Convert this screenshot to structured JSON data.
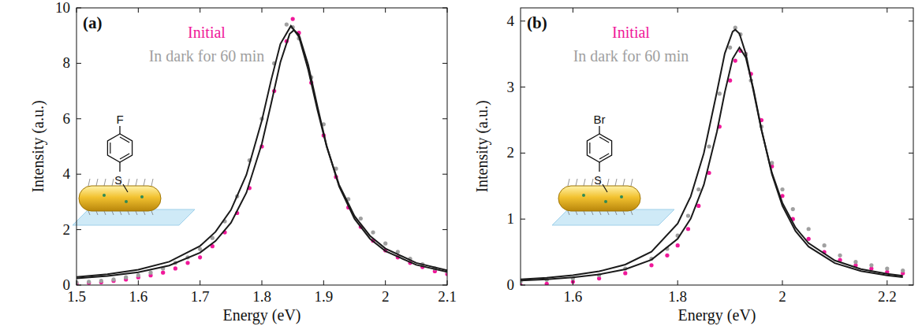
{
  "chart_data": [
    {
      "type": "scatter",
      "title": "(a)",
      "xlabel": "Energy (eV)",
      "ylabel": "Intensity (a.u.)",
      "xlim": [
        1.5,
        2.1
      ],
      "xticks": [
        1.5,
        1.6,
        1.7,
        1.8,
        1.9,
        2,
        2.1
      ],
      "ylim": [
        0,
        10
      ],
      "yticks": [
        0,
        2,
        4,
        6,
        8,
        10
      ],
      "legend": "upper left",
      "annotations": [
        "F",
        "S"
      ],
      "series": [
        {
          "name": "Initial",
          "color": "#f0189a",
          "type": "scatter",
          "marker": "circle",
          "x": [
            1.5,
            1.52,
            1.54,
            1.56,
            1.58,
            1.6,
            1.62,
            1.64,
            1.66,
            1.68,
            1.7,
            1.72,
            1.74,
            1.76,
            1.78,
            1.8,
            1.82,
            1.84,
            1.85,
            1.86,
            1.88,
            1.9,
            1.92,
            1.94,
            1.96,
            1.98,
            2.0,
            2.02,
            2.04,
            2.06,
            2.08,
            2.1
          ],
          "values": [
            0.05,
            0.08,
            0.1,
            0.15,
            0.2,
            0.28,
            0.35,
            0.45,
            0.6,
            0.8,
            1.0,
            1.4,
            1.9,
            2.6,
            3.5,
            5.0,
            7.0,
            8.8,
            9.6,
            9.1,
            7.3,
            5.4,
            3.9,
            2.8,
            2.1,
            1.6,
            1.25,
            1.0,
            0.8,
            0.65,
            0.5,
            0.4
          ]
        },
        {
          "name": "In dark for 60 min",
          "color": "#a0a0a0",
          "type": "scatter",
          "marker": "circle",
          "x": [
            1.5,
            1.52,
            1.54,
            1.56,
            1.58,
            1.6,
            1.62,
            1.64,
            1.66,
            1.68,
            1.7,
            1.72,
            1.74,
            1.76,
            1.78,
            1.8,
            1.82,
            1.84,
            1.85,
            1.86,
            1.88,
            1.9,
            1.92,
            1.94,
            1.96,
            1.98,
            2.0,
            2.02,
            2.04,
            2.06,
            2.08,
            2.1
          ],
          "values": [
            0.1,
            0.12,
            0.15,
            0.2,
            0.28,
            0.35,
            0.45,
            0.6,
            0.8,
            1.0,
            1.3,
            1.7,
            2.3,
            3.2,
            4.5,
            6.0,
            8.0,
            9.4,
            9.3,
            8.9,
            7.5,
            5.8,
            4.2,
            3.1,
            2.4,
            1.9,
            1.5,
            1.2,
            0.95,
            0.75,
            0.6,
            0.5
          ]
        },
        {
          "color": "#1a1a1a",
          "type": "line",
          "line_style": "solid",
          "x": [
            1.5,
            1.55,
            1.6,
            1.65,
            1.7,
            1.725,
            1.75,
            1.775,
            1.8,
            1.815,
            1.83,
            1.845,
            1.852,
            1.86,
            1.875,
            1.89,
            1.905,
            1.925,
            1.95,
            1.975,
            2.0,
            2.05,
            2.1
          ],
          "values": [
            0.243,
            0.327,
            0.462,
            0.702,
            1.169,
            1.589,
            2.249,
            3.333,
            5.1,
            6.54,
            8.04,
            9.06,
            9.2,
            9.03,
            7.95,
            6.44,
            5.01,
            3.56,
            2.39,
            1.67,
            1.225,
            0.727,
            0.477
          ]
        },
        {
          "color": "#1a1a1a",
          "type": "line",
          "line_style": "solid",
          "x": [
            1.5,
            1.55,
            1.6,
            1.65,
            1.7,
            1.725,
            1.75,
            1.775,
            1.8,
            1.815,
            1.83,
            1.847,
            1.86,
            1.875,
            1.89,
            1.905,
            1.925,
            1.95,
            1.975,
            2.0,
            2.05,
            2.1
          ],
          "values": [
            0.289,
            0.391,
            0.553,
            0.842,
            1.412,
            1.92,
            2.71,
            3.98,
            5.94,
            7.39,
            8.7,
            9.35,
            8.96,
            7.77,
            6.31,
            4.99,
            3.62,
            2.49,
            1.777,
            1.319,
            0.799,
            0.53
          ]
        }
      ]
    },
    {
      "type": "scatter",
      "title": "(b)",
      "xlabel": "Energy (eV)",
      "ylabel": "Intensity (a.u.)",
      "xlim": [
        1.5,
        2.25
      ],
      "xticks": [
        1.6,
        1.8,
        2,
        2.2
      ],
      "ylim": [
        0,
        4.2
      ],
      "yticks": [
        0,
        1,
        2,
        3,
        4
      ],
      "legend": "upper left",
      "annotations": [
        "Br",
        "S"
      ],
      "series": [
        {
          "name": "Initial",
          "color": "#f0189a",
          "type": "scatter",
          "marker": "circle",
          "x": [
            1.5,
            1.55,
            1.6,
            1.65,
            1.7,
            1.75,
            1.78,
            1.8,
            1.82,
            1.84,
            1.86,
            1.88,
            1.9,
            1.91,
            1.92,
            1.93,
            1.94,
            1.96,
            1.98,
            2.0,
            2.02,
            2.05,
            2.08,
            2.11,
            2.14,
            2.17,
            2.2,
            2.23
          ],
          "values": [
            0.0,
            0.02,
            0.05,
            0.1,
            0.18,
            0.3,
            0.45,
            0.6,
            0.85,
            1.2,
            1.7,
            2.4,
            3.1,
            3.4,
            3.55,
            3.5,
            3.2,
            2.5,
            1.8,
            1.35,
            1.0,
            0.7,
            0.5,
            0.38,
            0.3,
            0.25,
            0.2,
            0.18
          ]
        },
        {
          "name": "In dark for 60 min",
          "color": "#a0a0a0",
          "type": "scatter",
          "marker": "circle",
          "x": [
            1.5,
            1.55,
            1.6,
            1.65,
            1.7,
            1.75,
            1.78,
            1.8,
            1.82,
            1.84,
            1.86,
            1.88,
            1.9,
            1.91,
            1.92,
            1.93,
            1.94,
            1.96,
            1.98,
            2.0,
            2.02,
            2.05,
            2.08,
            2.11,
            2.14,
            2.17,
            2.2,
            2.23
          ],
          "values": [
            0.05,
            0.08,
            0.1,
            0.15,
            0.25,
            0.4,
            0.55,
            0.75,
            1.05,
            1.45,
            2.1,
            2.9,
            3.6,
            3.9,
            3.8,
            3.5,
            3.1,
            2.4,
            1.85,
            1.45,
            1.15,
            0.85,
            0.6,
            0.45,
            0.35,
            0.3,
            0.25,
            0.22
          ]
        },
        {
          "color": "#1a1a1a",
          "type": "line",
          "line_style": "solid",
          "x": [
            1.5,
            1.55,
            1.6,
            1.65,
            1.7,
            1.75,
            1.8,
            1.825,
            1.85,
            1.875,
            1.89,
            1.905,
            1.918,
            1.93,
            1.945,
            1.96,
            1.98,
            2.0,
            2.025,
            2.05,
            2.1,
            2.15,
            2.2,
            2.23
          ],
          "values": [
            0.068,
            0.087,
            0.116,
            0.161,
            0.238,
            0.383,
            0.7,
            1.008,
            1.519,
            2.324,
            2.92,
            3.43,
            3.6,
            3.45,
            2.96,
            2.36,
            1.68,
            1.2,
            0.818,
            0.583,
            0.332,
            0.212,
            0.146,
            0.12
          ]
        },
        {
          "color": "#1a1a1a",
          "type": "line",
          "line_style": "solid",
          "x": [
            1.5,
            1.55,
            1.6,
            1.65,
            1.7,
            1.75,
            1.8,
            1.825,
            1.85,
            1.875,
            1.89,
            1.905,
            1.91,
            1.918,
            1.93,
            1.945,
            1.96,
            1.98,
            2.0,
            2.025,
            2.05,
            2.1,
            2.15,
            2.2,
            2.23
          ],
          "values": [
            0.0866,
            0.1115,
            0.149,
            0.208,
            0.31,
            0.505,
            0.933,
            1.344,
            1.998,
            2.93,
            3.51,
            3.84,
            3.87,
            3.81,
            3.51,
            2.93,
            2.35,
            1.701,
            1.245,
            0.871,
            0.635,
            0.372,
            0.242,
            0.169,
            0.14
          ]
        }
      ]
    }
  ]
}
